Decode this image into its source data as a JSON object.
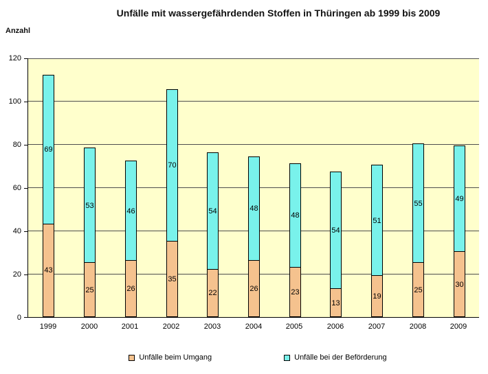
{
  "chart_data": {
    "type": "bar",
    "stacked": true,
    "title": "Unfälle mit wassergefährdenden Stoffen in Thüringen ab 1999 bis 2009",
    "xlabel": "",
    "ylabel": "Anzahl",
    "categories": [
      "1999",
      "2000",
      "2001",
      "2002",
      "2003",
      "2004",
      "2005",
      "2006",
      "2007",
      "2008",
      "2009"
    ],
    "series": [
      {
        "name": "Unfälle beim Umgang",
        "color": "#F5C28E",
        "values": [
          43,
          25,
          26,
          35,
          22,
          26,
          23,
          13,
          19,
          25,
          30
        ]
      },
      {
        "name": "Unfälle bei der Beförderung",
        "color": "#79F2EB",
        "values": [
          69,
          53,
          46,
          70,
          54,
          48,
          48,
          54,
          51,
          55,
          49
        ]
      }
    ],
    "totals": [
      112,
      78,
      72,
      105,
      76,
      74,
      71,
      67,
      70,
      80,
      79
    ],
    "ylim": [
      0,
      120
    ],
    "yticks": [
      0,
      20,
      40,
      60,
      80,
      100,
      120
    ],
    "grid": true,
    "data_labels": true,
    "legend_position": "bottom",
    "plot_bg": "#FFFFCC",
    "gridline_color": "#4d4d4d"
  }
}
